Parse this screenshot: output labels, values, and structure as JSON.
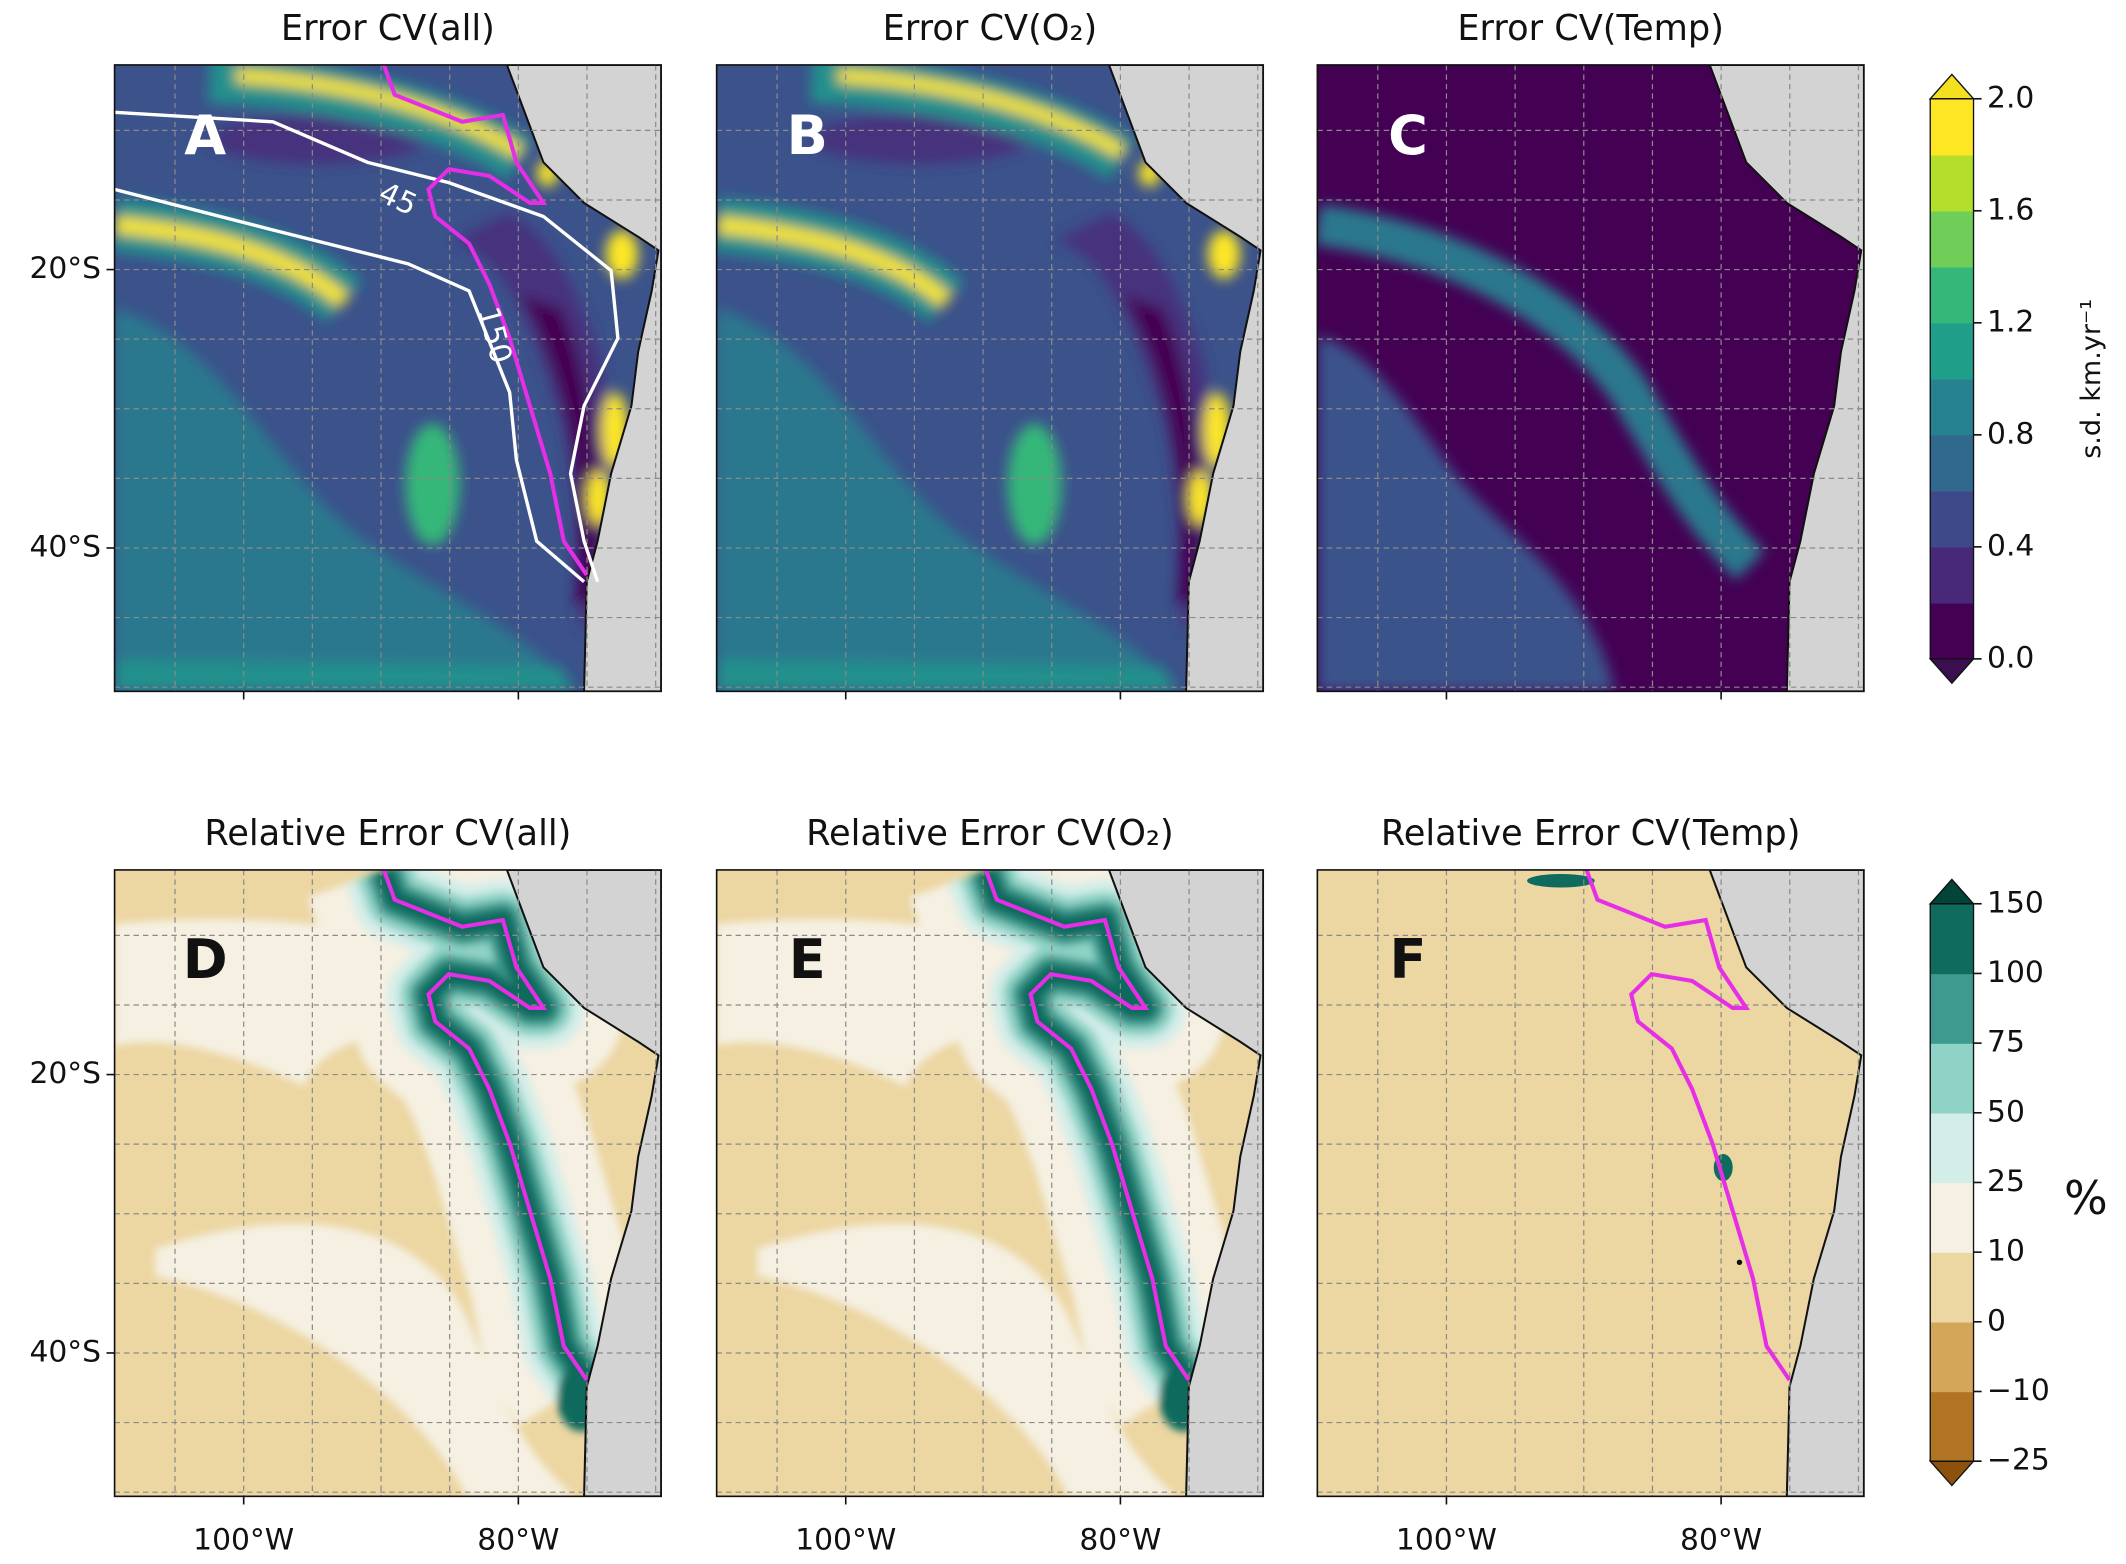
{
  "panels": [
    {
      "letter": "A",
      "title": "Error CV(all)"
    },
    {
      "letter": "B",
      "title": "Error CV(O₂)"
    },
    {
      "letter": "C",
      "title": "Error CV(Temp)"
    },
    {
      "letter": "D",
      "title": "Relative Error CV(all)"
    },
    {
      "letter": "E",
      "title": "Relative Error CV(O₂)"
    },
    {
      "letter": "F",
      "title": "Relative Error CV(Temp)"
    }
  ],
  "contour_labels": [
    "45",
    "150"
  ],
  "maps": {
    "xlim": [
      -109.4,
      -69.6
    ],
    "ylim": [
      -50.3,
      -5.3
    ],
    "xticks": [
      {
        "value": -100,
        "label": "100°W"
      },
      {
        "value": -80,
        "label": "80°W"
      }
    ],
    "yticks": [
      {
        "value": -20,
        "label": "20°S"
      },
      {
        "value": -40,
        "label": "40°S"
      }
    ],
    "xgrid": [
      -105,
      -100,
      -95,
      -90,
      -85,
      -80,
      -75,
      -70
    ],
    "ygrid": [
      -10,
      -15,
      -20,
      -25,
      -30,
      -35,
      -40,
      -45,
      -50
    ],
    "grid": true
  },
  "colorbars": [
    {
      "label": "s.d. km.yr⁻¹",
      "lim": [
        0,
        2
      ],
      "ticks": [
        {
          "value": 0,
          "label": "0.0"
        },
        0.4,
        0.8,
        1.2,
        1.6,
        {
          "value": 2,
          "label": "2.0"
        }
      ],
      "colors": [
        "#440154",
        "#482878",
        "#3e4989",
        "#31688e",
        "#26828e",
        "#1f9e89",
        "#35b779",
        "#6ece58",
        "#b5de2b",
        "#fde725"
      ],
      "under": "#3b0f4f",
      "over": "#f4e01e",
      "spacing": "proportional"
    },
    {
      "label": "%",
      "ticks": [
        {
          "value": -25,
          "label": "−25"
        },
        {
          "value": -10,
          "label": "−10"
        },
        0,
        10,
        25,
        50,
        75,
        100,
        150
      ],
      "colors": [
        "#b07424",
        "#d4a65a",
        "#ecd6a2",
        "#f5f0e2",
        "#d3ede9",
        "#8fd3c6",
        "#3e9a8e",
        "#0f6b5d"
      ],
      "under": "#8c510a",
      "over": "#01443a",
      "spacing": "uniform"
    }
  ]
}
